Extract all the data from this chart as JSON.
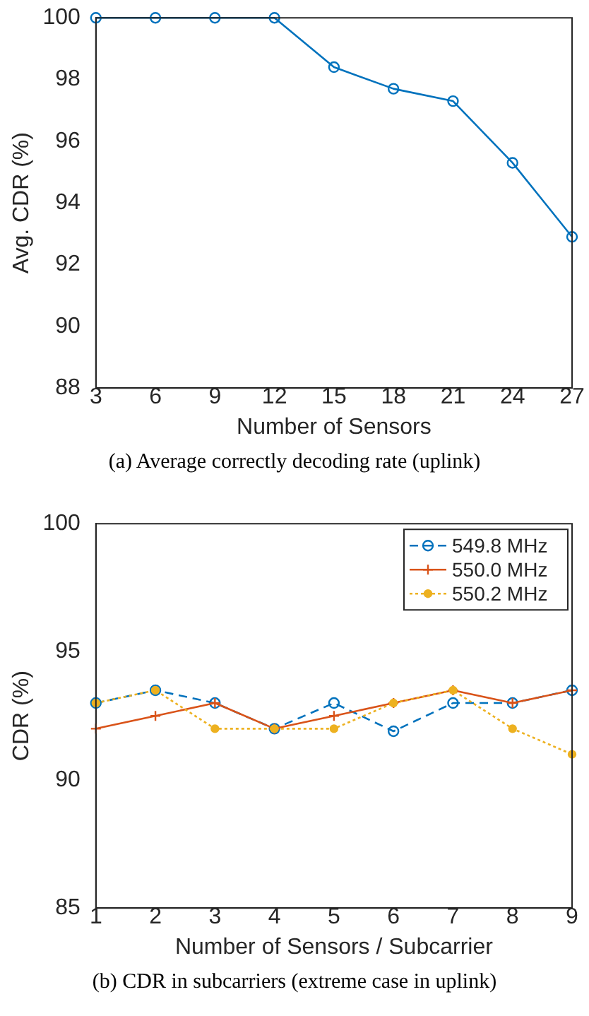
{
  "chart_data": [
    {
      "type": "line",
      "title": "(a)  Average correctly decoding rate (uplink)",
      "xlabel": "Number of Sensors",
      "ylabel": "Avg. CDR (%)",
      "x": [
        3,
        6,
        9,
        12,
        15,
        18,
        21,
        24,
        27
      ],
      "series": [
        {
          "color": "#0072bd",
          "values": [
            100,
            100,
            100,
            100,
            98.4,
            97.7,
            97.3,
            95.3,
            92.9
          ],
          "marker": "circle",
          "line_style": "solid"
        }
      ],
      "xlim": [
        3,
        27
      ],
      "xticks": [
        3,
        6,
        9,
        12,
        15,
        18,
        21,
        24,
        27
      ],
      "ylim": [
        88,
        100
      ],
      "yticks": [
        88,
        90,
        92,
        94,
        96,
        98,
        100
      ],
      "grid": false,
      "legend": false
    },
    {
      "type": "line",
      "title": "(b)  CDR in subcarriers (extreme case in uplink)",
      "xlabel": "Number of Sensors / Subcarrier",
      "ylabel": "CDR (%)",
      "x": [
        1,
        2,
        3,
        4,
        5,
        6,
        7,
        8,
        9
      ],
      "series": [
        {
          "name": "549.8 MHz",
          "color": "#0072bd",
          "values": [
            93,
            93.5,
            93,
            92,
            93,
            91.9,
            93,
            93,
            93.5
          ],
          "marker": "circle",
          "line_style": "dashed"
        },
        {
          "name": "550.0 MHz",
          "color": "#d95319",
          "values": [
            92,
            92.5,
            93,
            92,
            92.5,
            93,
            93.5,
            93,
            93.5
          ],
          "marker": "cross",
          "line_style": "solid"
        },
        {
          "name": "550.2 MHz",
          "color": "#edb120",
          "values": [
            93,
            93.5,
            92,
            92,
            92,
            93,
            93.5,
            92,
            91
          ],
          "marker": "circle",
          "line_style": "dotted"
        }
      ],
      "xlim": [
        1,
        9
      ],
      "xticks": [
        1,
        2,
        3,
        4,
        5,
        6,
        7,
        8,
        9
      ],
      "ylim": [
        85,
        100
      ],
      "yticks": [
        85,
        90,
        95,
        100
      ],
      "grid": false,
      "legend": "top right"
    }
  ]
}
